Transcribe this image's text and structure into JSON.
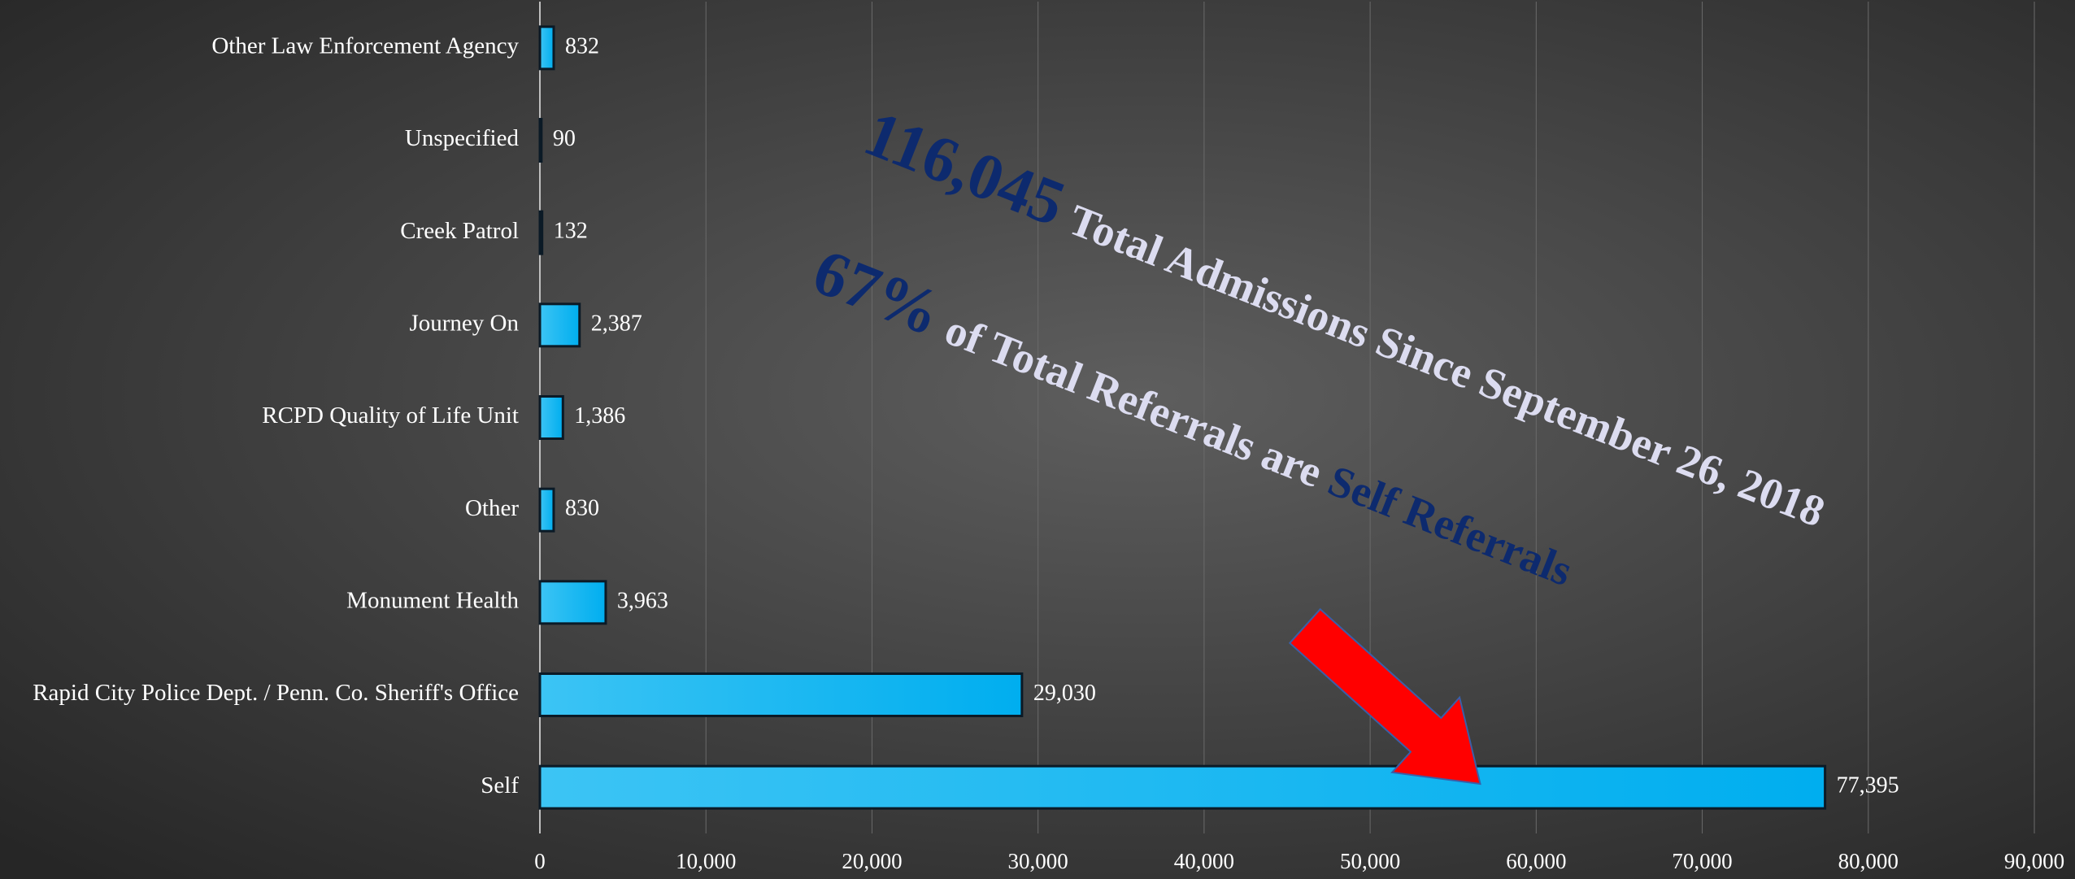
{
  "chart_data": {
    "type": "bar",
    "orientation": "horizontal",
    "categories": [
      "Other Law Enforcement Agency",
      "Unspecified",
      "Creek Patrol",
      "Journey On",
      "RCPD Quality of Life Unit",
      "Other",
      "Monument Health",
      "Rapid City Police Dept. / Penn. Co. Sheriff's Office",
      "Self"
    ],
    "values": [
      832,
      90,
      132,
      2387,
      1386,
      830,
      3963,
      29030,
      77395
    ],
    "value_labels": [
      "832",
      "90",
      "132",
      "2,387",
      "1,386",
      "830",
      "3,963",
      "29,030",
      "77,395"
    ],
    "color": "#00b0f0",
    "xlim": [
      0,
      90000
    ],
    "xticks": [
      0,
      {
        "value": 10000,
        "label": "10,000"
      },
      {
        "value": 20000,
        "label": "20,000"
      },
      {
        "value": 30000,
        "label": "30,000"
      },
      {
        "value": 40000,
        "label": "40,000"
      },
      {
        "value": 50000,
        "label": "50,000"
      },
      {
        "value": 60000,
        "label": "60,000"
      },
      {
        "value": 70000,
        "label": "70,000"
      },
      {
        "value": 80000,
        "label": "80,000"
      },
      {
        "value": 90000,
        "label": "90,000"
      }
    ],
    "grid": true,
    "annotations": [
      [
        "116,045",
        "Total Admissions Since September 26, 2018"
      ],
      [
        "67%",
        "of Total Referrals are",
        "Self Referrals"
      ]
    ]
  }
}
